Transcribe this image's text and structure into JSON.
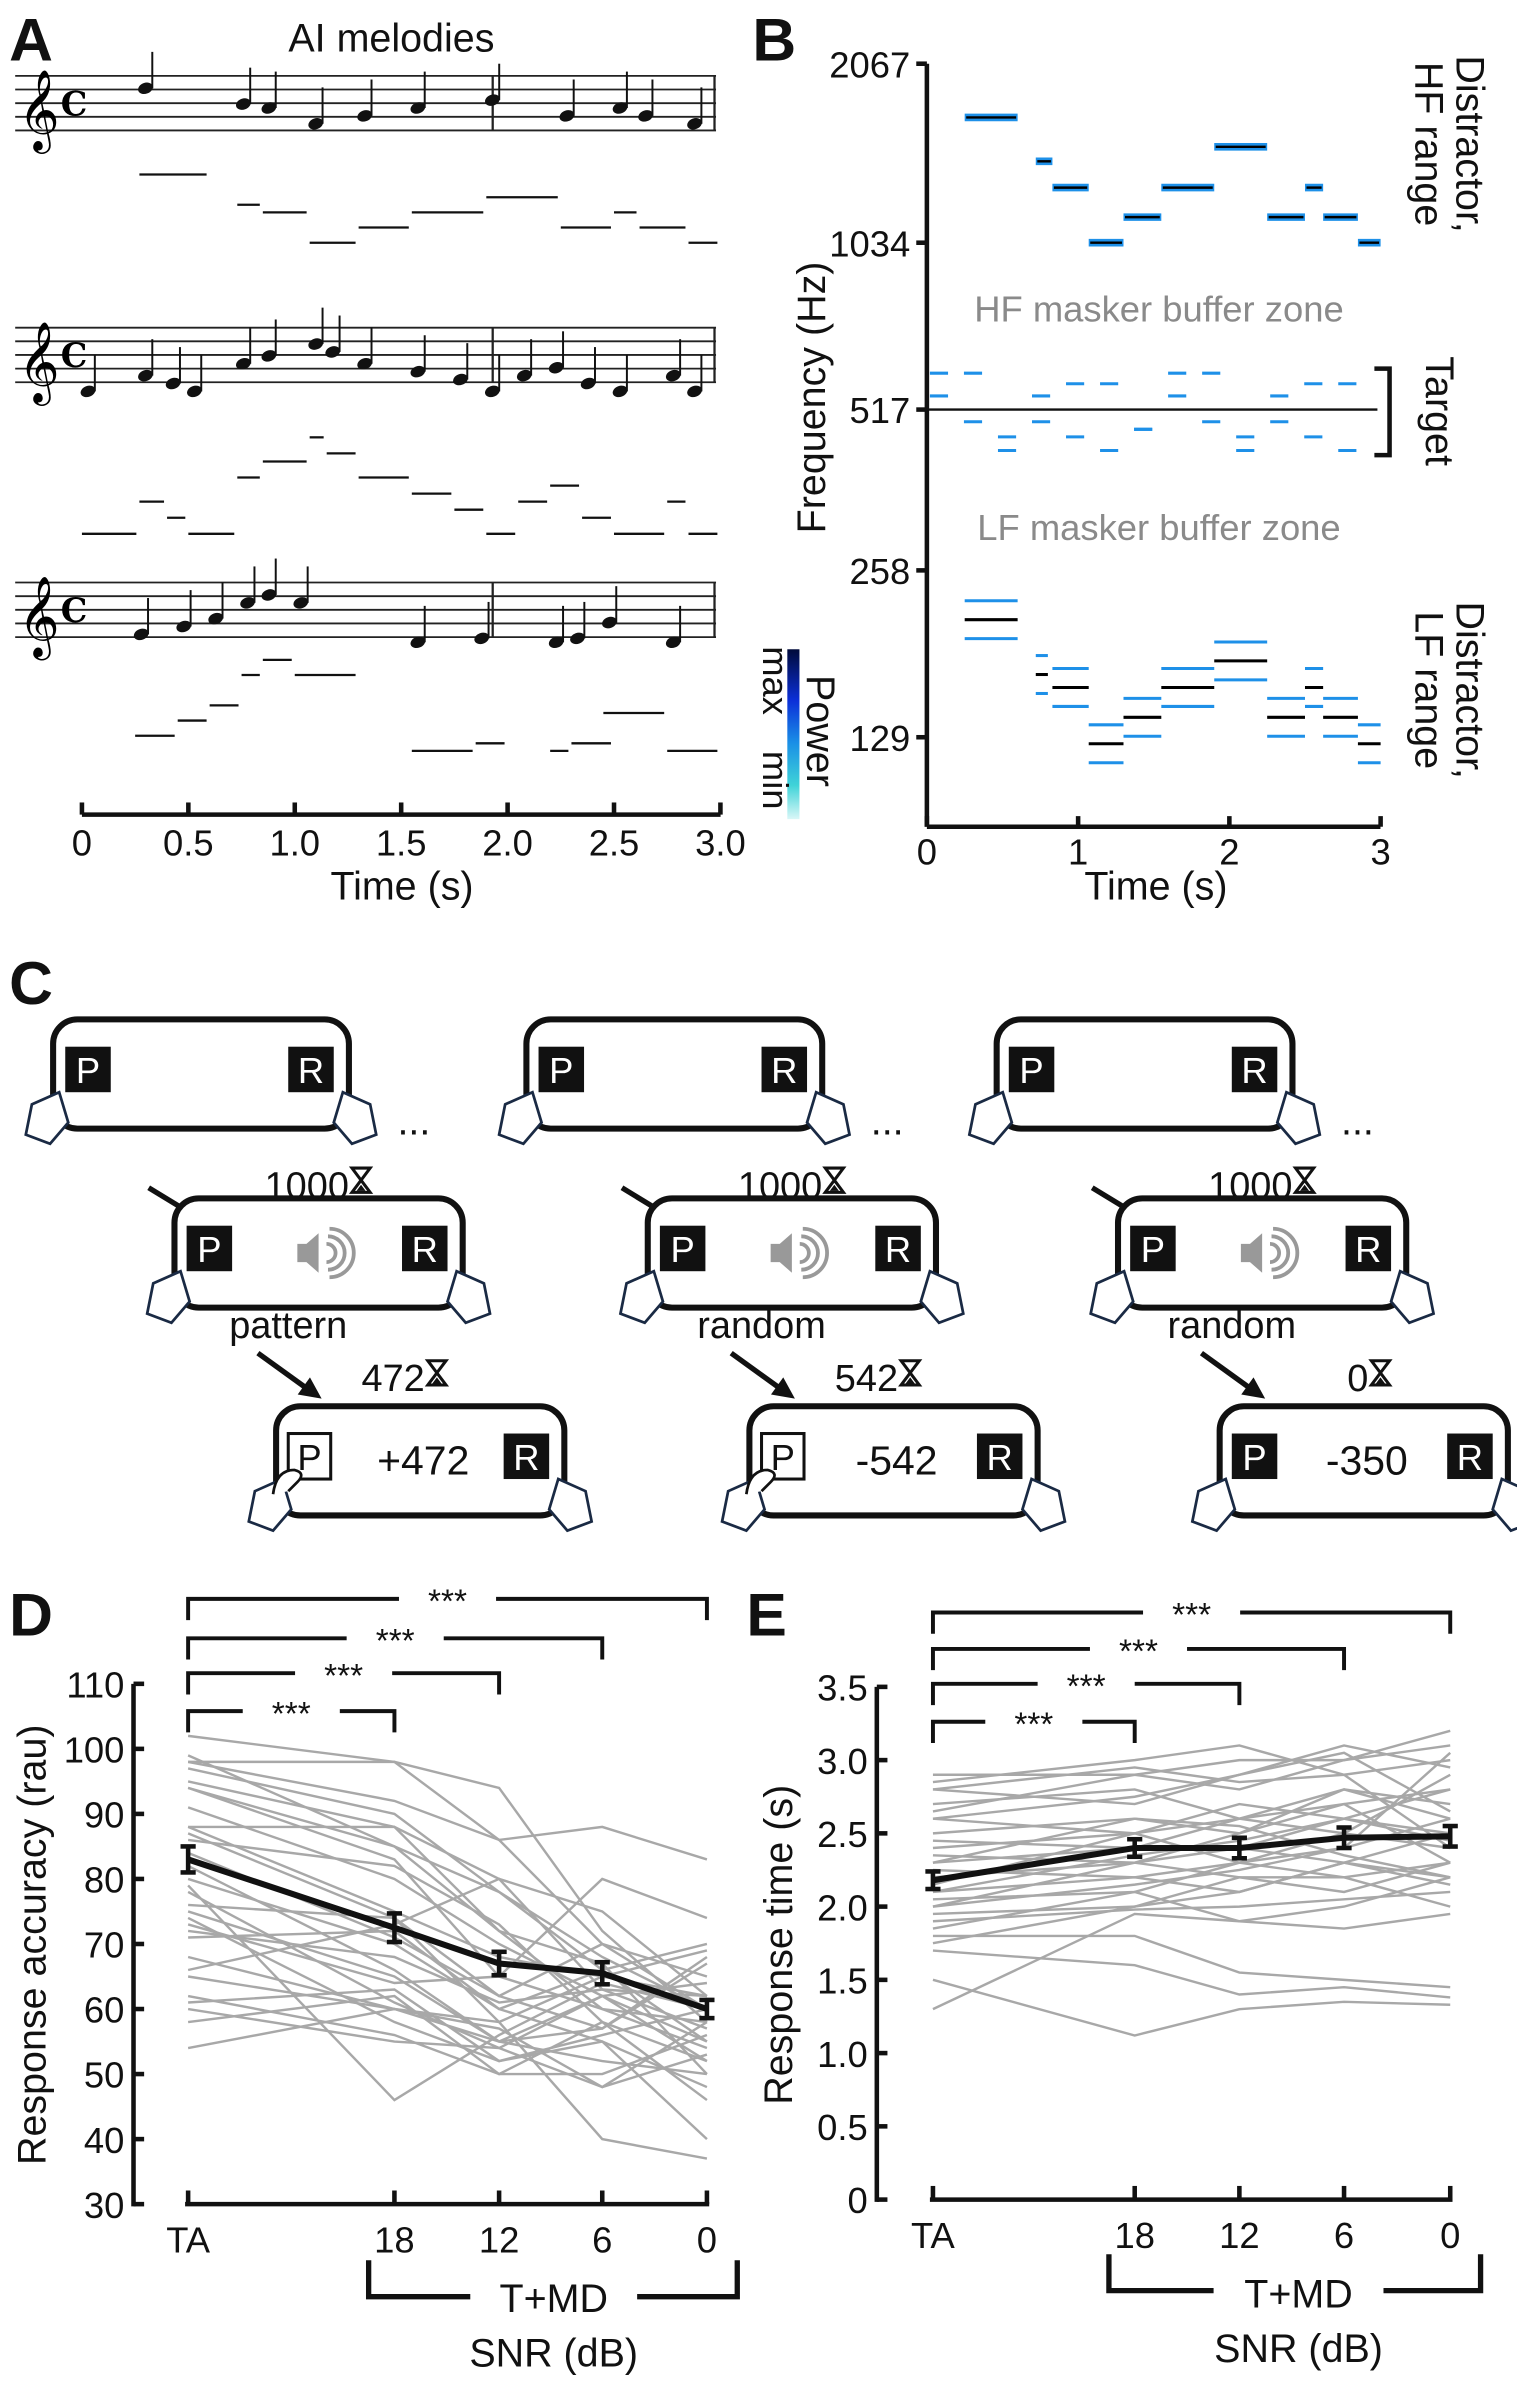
{
  "panels": {
    "a": "A",
    "b": "B",
    "c": "C",
    "d": "D",
    "e": "E"
  },
  "panel_a": {
    "title": "AI melodies",
    "xlabel": "Time (s)",
    "xticks": [
      "0",
      "0.5",
      "1.0",
      "1.5",
      "2.0",
      "2.5",
      "3.0"
    ],
    "time_signature": "C",
    "melodies": [
      {
        "segments": [
          [
            0.27,
            0.6,
            0
          ],
          [
            0.73,
            0.85,
            4
          ],
          [
            0.85,
            1.07,
            5
          ],
          [
            1.07,
            1.3,
            9
          ],
          [
            1.3,
            1.55,
            7
          ],
          [
            1.55,
            1.9,
            5
          ],
          [
            1.9,
            2.25,
            3
          ],
          [
            2.25,
            2.5,
            7
          ],
          [
            2.5,
            2.62,
            5
          ],
          [
            2.62,
            2.85,
            7
          ],
          [
            2.85,
            3.0,
            9
          ]
        ]
      },
      {
        "segments": [
          [
            0,
            0.27,
            13
          ],
          [
            0.27,
            0.4,
            9
          ],
          [
            0.4,
            0.5,
            11
          ],
          [
            0.5,
            0.73,
            13
          ],
          [
            0.73,
            0.85,
            6
          ],
          [
            0.85,
            1.07,
            4
          ],
          [
            1.07,
            1.15,
            1
          ],
          [
            1.15,
            1.3,
            3
          ],
          [
            1.3,
            1.55,
            6
          ],
          [
            1.55,
            1.75,
            8
          ],
          [
            1.75,
            1.9,
            10
          ],
          [
            1.9,
            2.05,
            13
          ],
          [
            2.05,
            2.2,
            9
          ],
          [
            2.2,
            2.35,
            7
          ],
          [
            2.35,
            2.5,
            11
          ],
          [
            2.5,
            2.75,
            13
          ],
          [
            2.75,
            2.85,
            9
          ],
          [
            2.85,
            3.0,
            13
          ]
        ]
      },
      {
        "segments": [
          [
            0.25,
            0.45,
            10
          ],
          [
            0.45,
            0.6,
            8
          ],
          [
            0.6,
            0.75,
            6
          ],
          [
            0.75,
            0.85,
            2
          ],
          [
            0.85,
            1.0,
            0
          ],
          [
            1.0,
            1.3,
            2
          ],
          [
            1.55,
            1.85,
            12
          ],
          [
            1.85,
            2.0,
            11
          ],
          [
            2.2,
            2.3,
            12
          ],
          [
            2.3,
            2.5,
            11
          ],
          [
            2.45,
            2.75,
            7
          ],
          [
            2.75,
            3.0,
            12
          ]
        ]
      }
    ]
  },
  "panel_b": {
    "ylabel": "Frequency (Hz)",
    "xlabel": "Time (s)",
    "yticks": [
      "2067",
      "1034",
      "517",
      "258",
      "129"
    ],
    "xticks": [
      "0",
      "1",
      "2",
      "3"
    ],
    "hf_label": "HF masker buffer zone",
    "lf_label": "LF masker buffer zone",
    "right_labels": {
      "hf": [
        "Distractor,",
        "HF range"
      ],
      "target": "Target",
      "lf": [
        "Distractor,",
        "LF range"
      ]
    },
    "colorbar": {
      "label": "Power",
      "max": "max",
      "min": "min",
      "colors": [
        "#000a3a",
        "#0b2fd8",
        "#1a8fe6",
        "#3fd3d8",
        "#d9f7f7"
      ]
    },
    "hf_notes": [
      [
        0.25,
        0.6,
        1740
      ],
      [
        0.72,
        0.83,
        1450
      ],
      [
        0.83,
        1.07,
        1300
      ],
      [
        1.07,
        1.3,
        1034
      ],
      [
        1.3,
        1.55,
        1150
      ],
      [
        1.55,
        1.9,
        1300
      ],
      [
        1.9,
        2.25,
        1540
      ],
      [
        2.25,
        2.5,
        1150
      ],
      [
        2.5,
        2.62,
        1300
      ],
      [
        2.62,
        2.85,
        1150
      ],
      [
        2.85,
        3.0,
        1034
      ]
    ],
    "lf_notes": [
      [
        0.25,
        0.6,
        216
      ],
      [
        0.72,
        0.8,
        172
      ],
      [
        0.83,
        1.07,
        163
      ],
      [
        1.07,
        1.3,
        129
      ],
      [
        1.3,
        1.55,
        144
      ],
      [
        1.55,
        1.9,
        163
      ],
      [
        1.9,
        2.25,
        182
      ],
      [
        2.25,
        2.5,
        144
      ],
      [
        2.5,
        2.62,
        163
      ],
      [
        2.62,
        2.85,
        144
      ],
      [
        2.85,
        3.0,
        129
      ]
    ],
    "target_freq": 517,
    "colors": {
      "note": "#1e90e8",
      "center": "#000000"
    }
  },
  "panel_c": {
    "ellipsis": "...",
    "trials": [
      {
        "wait1": "1000",
        "cue": "pattern",
        "wait2": "472",
        "feedback": "+472",
        "pressed": true
      },
      {
        "wait1": "1000",
        "cue": "random",
        "wait2": "542",
        "feedback": "-542",
        "pressed": true
      },
      {
        "wait1": "1000",
        "cue": "random",
        "wait2": "0",
        "feedback": "-350",
        "pressed": false
      }
    ],
    "button_p": "P",
    "button_r": "R"
  },
  "chart_data": [
    {
      "type": "line",
      "title": "D",
      "ylabel": "Response accuracy (rau)",
      "xlabel": "SNR (dB)",
      "group_label": "T+MD",
      "categories": [
        "TA",
        "18",
        "12",
        "6",
        "0"
      ],
      "yticks": [
        "30",
        "40",
        "50",
        "60",
        "70",
        "80",
        "90",
        "100",
        "110"
      ],
      "ylim": [
        30,
        110
      ],
      "significance": [
        {
          "from": "TA",
          "to": "18",
          "label": "***"
        },
        {
          "from": "TA",
          "to": "12",
          "label": "***"
        },
        {
          "from": "TA",
          "to": "6",
          "label": "***"
        },
        {
          "from": "TA",
          "to": "0",
          "label": "***"
        }
      ],
      "mean": [
        83,
        72.5,
        67,
        65.5,
        60
      ],
      "sem": [
        2,
        2.2,
        1.8,
        1.7,
        1.4
      ],
      "subjects": [
        [
          102,
          98,
          86,
          70,
          60
        ],
        [
          98,
          98,
          94,
          72,
          58
        ],
        [
          98,
          92,
          86,
          88,
          83
        ],
        [
          95,
          88,
          80,
          75,
          62
        ],
        [
          94,
          85,
          78,
          68,
          60
        ],
        [
          91,
          80,
          70,
          62,
          55
        ],
        [
          88,
          88,
          72,
          60,
          54
        ],
        [
          88,
          75,
          68,
          65,
          69
        ],
        [
          86,
          82,
          73,
          58,
          52
        ],
        [
          84,
          71,
          62,
          57,
          68
        ],
        [
          82,
          66,
          55,
          62,
          52
        ],
        [
          80,
          70,
          60,
          55,
          48
        ],
        [
          78,
          61,
          54,
          48,
          58
        ],
        [
          76,
          74,
          62,
          70,
          65
        ],
        [
          75,
          65,
          55,
          57,
          67
        ],
        [
          74,
          58,
          52,
          55,
          40
        ],
        [
          72,
          68,
          61,
          63,
          62
        ],
        [
          71,
          72,
          60,
          66,
          70
        ],
        [
          68,
          60,
          55,
          52,
          50
        ],
        [
          65,
          60,
          57,
          48,
          53
        ],
        [
          62,
          56,
          50,
          50,
          56
        ],
        [
          61,
          63,
          52,
          56,
          60
        ],
        [
          60,
          55,
          54,
          62,
          64
        ],
        [
          58,
          62,
          50,
          58,
          46
        ],
        [
          54,
          60,
          58,
          65,
          62
        ],
        [
          97,
          90,
          78,
          66,
          55
        ],
        [
          94,
          83,
          65,
          60,
          58
        ],
        [
          87,
          74,
          58,
          40,
          37
        ],
        [
          79,
          46,
          56,
          64,
          60
        ],
        [
          73,
          64,
          65,
          80,
          74
        ],
        [
          66,
          73,
          80,
          63,
          57
        ],
        [
          99,
          85,
          72,
          67,
          50
        ]
      ]
    },
    {
      "type": "line",
      "title": "E",
      "ylabel": "Response time (s)",
      "xlabel": "SNR (dB)",
      "group_label": "T+MD",
      "categories": [
        "TA",
        "18",
        "12",
        "6",
        "0"
      ],
      "yticks": [
        "0",
        "0.5",
        "1.0",
        "1.5",
        "2.0",
        "2.5",
        "3.0",
        "3.5"
      ],
      "ylim": [
        0,
        3.5
      ],
      "significance": [
        {
          "from": "TA",
          "to": "18",
          "label": "***"
        },
        {
          "from": "TA",
          "to": "12",
          "label": "***"
        },
        {
          "from": "TA",
          "to": "6",
          "label": "***"
        },
        {
          "from": "TA",
          "to": "0",
          "label": "***"
        }
      ],
      "mean": [
        2.18,
        2.4,
        2.4,
        2.47,
        2.48
      ],
      "sem": [
        0.06,
        0.06,
        0.07,
        0.07,
        0.07
      ],
      "subjects": [
        [
          2.9,
          2.9,
          3.0,
          3.0,
          3.2
        ],
        [
          2.85,
          3.0,
          3.1,
          2.9,
          3.0
        ],
        [
          2.8,
          2.7,
          2.9,
          3.1,
          2.95
        ],
        [
          2.7,
          2.8,
          2.6,
          2.7,
          2.8
        ],
        [
          2.65,
          2.9,
          2.8,
          3.0,
          3.1
        ],
        [
          2.6,
          2.5,
          2.7,
          2.6,
          2.5
        ],
        [
          2.5,
          2.6,
          2.5,
          2.8,
          2.7
        ],
        [
          2.45,
          2.4,
          2.6,
          2.5,
          2.9
        ],
        [
          2.4,
          2.5,
          2.3,
          2.4,
          2.6
        ],
        [
          2.35,
          2.3,
          2.5,
          2.7,
          2.3
        ],
        [
          2.3,
          2.4,
          2.4,
          2.3,
          2.5
        ],
        [
          2.25,
          2.2,
          2.3,
          2.5,
          2.4
        ],
        [
          2.2,
          2.3,
          2.2,
          2.2,
          2.3
        ],
        [
          2.15,
          2.5,
          2.6,
          2.8,
          2.6
        ],
        [
          2.1,
          2.2,
          2.1,
          2.3,
          2.2
        ],
        [
          2.05,
          2.1,
          2.3,
          2.2,
          2.0
        ],
        [
          2.0,
          2.3,
          2.4,
          2.6,
          2.8
        ],
        [
          1.95,
          2.0,
          2.2,
          2.1,
          2.3
        ],
        [
          1.9,
          1.98,
          2.0,
          2.05,
          2.1
        ],
        [
          1.85,
          2.1,
          1.9,
          2.0,
          2.2
        ],
        [
          1.8,
          1.8,
          1.55,
          1.5,
          1.45
        ],
        [
          1.7,
          1.6,
          1.4,
          1.45,
          1.38
        ],
        [
          1.5,
          1.12,
          1.3,
          1.35,
          1.33
        ],
        [
          1.3,
          1.95,
          1.9,
          1.85,
          1.95
        ],
        [
          2.8,
          2.95,
          2.85,
          2.9,
          2.4
        ],
        [
          2.6,
          2.75,
          2.9,
          3.05,
          2.65
        ],
        [
          2.3,
          2.6,
          2.55,
          2.35,
          2.2
        ],
        [
          2.1,
          2.35,
          2.45,
          2.6,
          2.45
        ],
        [
          2.0,
          2.15,
          2.25,
          2.4,
          3.05
        ],
        [
          1.75,
          2.0,
          2.1,
          2.3,
          2.15
        ]
      ]
    }
  ]
}
